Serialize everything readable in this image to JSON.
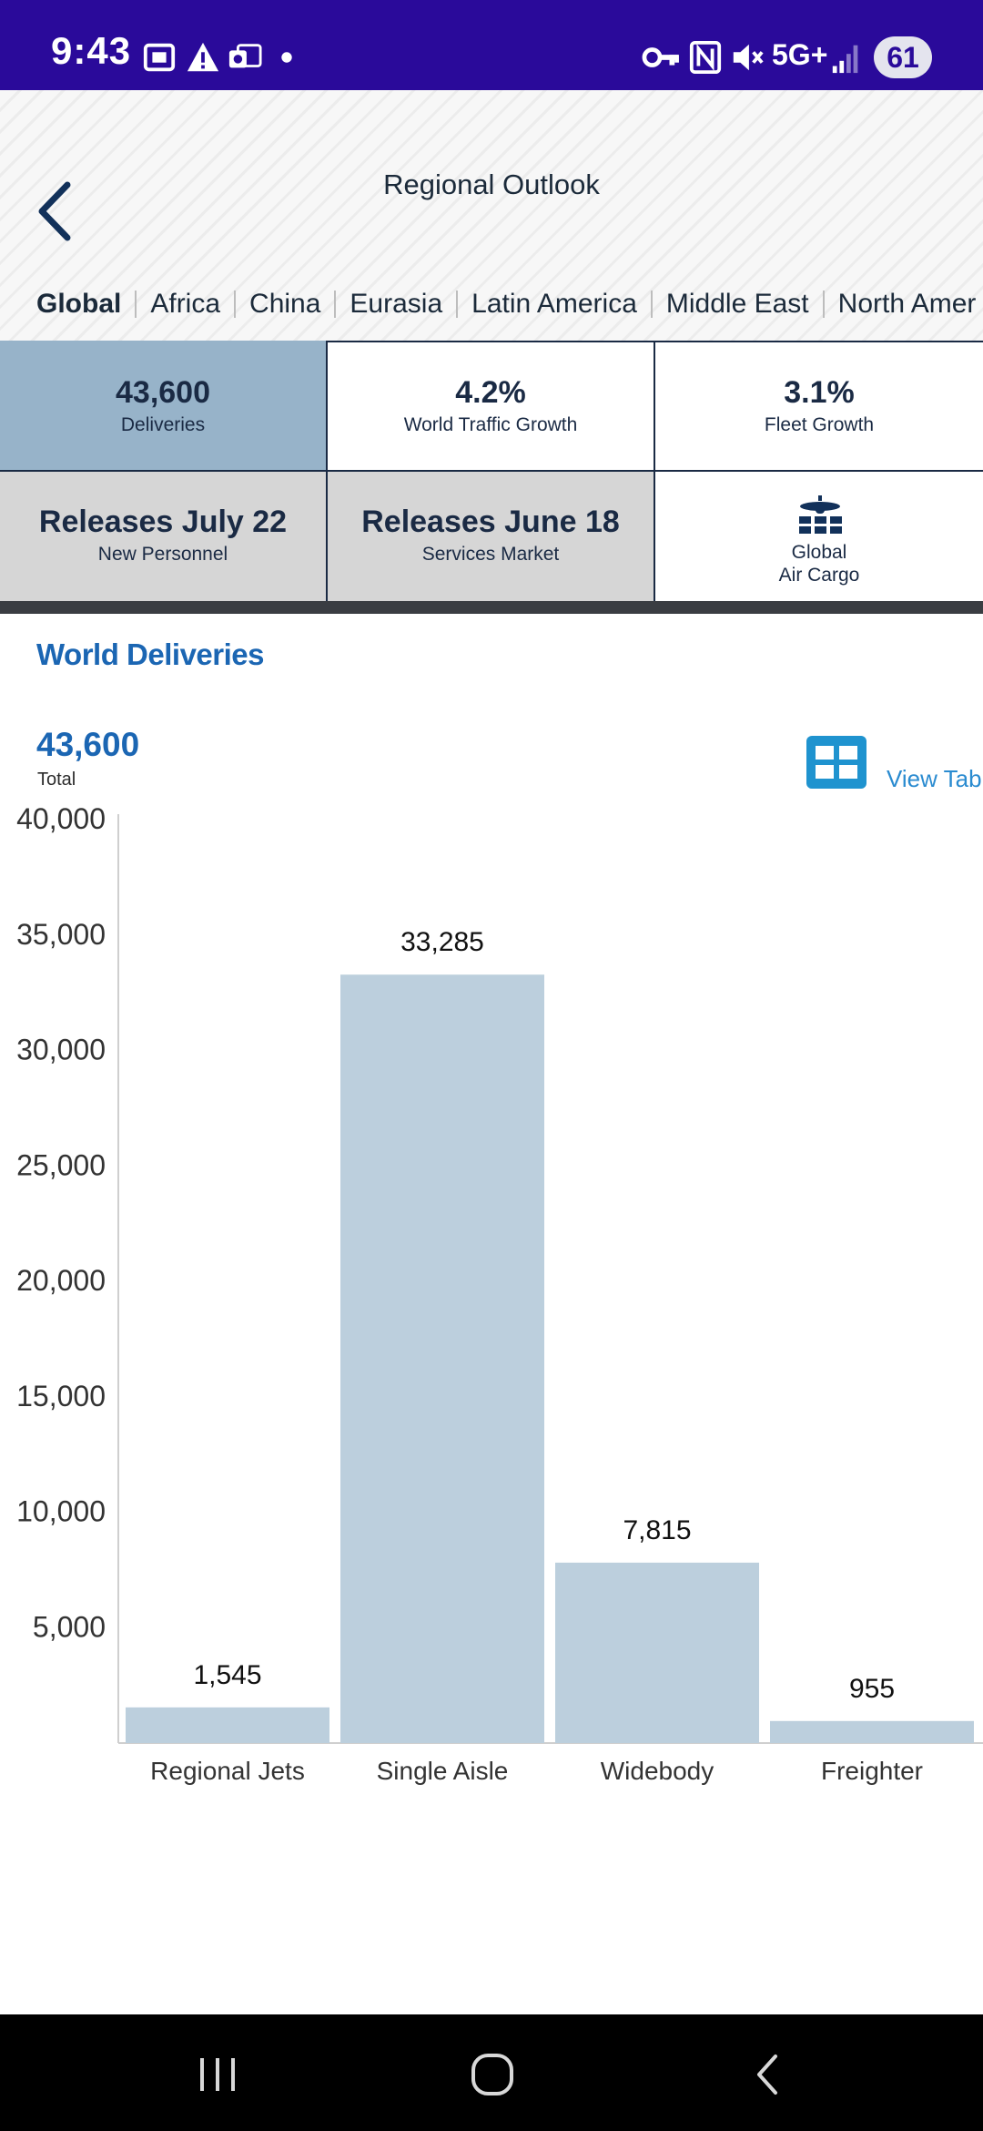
{
  "status_bar": {
    "time": "9:43",
    "network": "5G+",
    "battery": "61",
    "icons": [
      "screenshot-icon",
      "alert-icon",
      "outlook-icon",
      "dot-icon",
      "vpn-key-icon",
      "nfc-icon",
      "mute-icon",
      "signal-icon"
    ]
  },
  "header": {
    "title": "Regional Outlook",
    "back_icon": "chevron-left-icon",
    "tabs": [
      {
        "label": "Global",
        "active": true
      },
      {
        "label": "Africa",
        "active": false
      },
      {
        "label": "China",
        "active": false
      },
      {
        "label": "Eurasia",
        "active": false
      },
      {
        "label": "Latin America",
        "active": false
      },
      {
        "label": "Middle East",
        "active": false
      },
      {
        "label": "North Amer",
        "active": false
      }
    ]
  },
  "tiles": [
    {
      "value": "43,600",
      "label": "Deliveries",
      "selected": true
    },
    {
      "value": "4.2%",
      "label": "World Traffic Growth",
      "selected": false
    },
    {
      "value": "3.1%",
      "label": "Fleet Growth",
      "selected": false
    },
    {
      "value": "Releases July 22",
      "label": "New Personnel",
      "selected": false
    },
    {
      "value": "Releases June 18",
      "label": "Services Market",
      "selected": false
    },
    {
      "line1": "Global",
      "line2": "Air Cargo",
      "icon": "cargo-plane-icon"
    }
  ],
  "section": {
    "title": "World Deliveries",
    "total_value": "43,600",
    "total_label": "Total",
    "view_table_label": "View Tabl"
  },
  "chart_data": {
    "type": "bar",
    "categories": [
      "Regional Jets",
      "Single Aisle",
      "Widebody",
      "Freighter"
    ],
    "values": [
      1545,
      33285,
      7815,
      955
    ],
    "value_labels": [
      "1,545",
      "33,285",
      "7,815",
      "955"
    ],
    "ylim": [
      0,
      40000
    ],
    "y_ticks": [
      5000,
      10000,
      15000,
      20000,
      25000,
      30000,
      35000,
      40000
    ],
    "y_tick_labels": [
      "5,000",
      "10,000",
      "15,000",
      "20,000",
      "25,000",
      "30,000",
      "35,000",
      "40,000"
    ],
    "bar_color": "#bccfdd",
    "grid": false
  },
  "colors": {
    "status_bar": "#2a0a9a",
    "accent_blue": "#1b66b3",
    "selected_tile": "#97b3c9",
    "release_tile": "#d6d6d6",
    "tile_text": "#1a2a44"
  },
  "nav_bar": {
    "icons": [
      "recent-apps-icon",
      "home-icon",
      "back-icon"
    ]
  }
}
